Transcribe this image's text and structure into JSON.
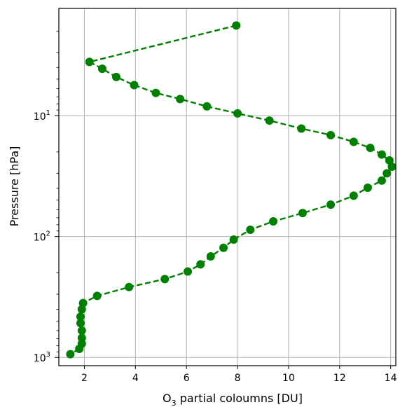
{
  "chart_data": {
    "type": "line",
    "xlabel": "O3 partial coloumns [DU]",
    "xlabel_main": "O",
    "xlabel_sub": "3",
    "xlabel_rest": " partial coloumns [DU]",
    "ylabel": "Pressure [hPa]",
    "xlim": [
      1.0,
      14.2
    ],
    "ylim": [
      1170,
      1.3
    ],
    "yscale": "log",
    "y_inverted": true,
    "grid": true,
    "xticks": [
      2,
      4,
      6,
      8,
      10,
      12,
      14
    ],
    "xtick_labels": [
      "2",
      "4",
      "6",
      "8",
      "10",
      "12",
      "14"
    ],
    "yticks": [
      10,
      100,
      1000
    ],
    "ytick_labels": [
      {
        "base": "10",
        "exp": "1"
      },
      {
        "base": "10",
        "exp": "2"
      },
      {
        "base": "10",
        "exp": "3"
      }
    ],
    "series": [
      {
        "color": "#008000",
        "line_style": "dashed",
        "marker": "circle",
        "x": [
          7.95,
          2.2,
          2.7,
          3.25,
          3.95,
          4.8,
          5.75,
          6.8,
          8.0,
          9.25,
          10.5,
          11.65,
          12.55,
          13.2,
          13.65,
          13.95,
          14.05,
          13.85,
          13.65,
          13.1,
          12.55,
          11.65,
          10.55,
          9.4,
          8.5,
          7.85,
          7.45,
          6.95,
          6.55,
          6.05,
          5.15,
          3.75,
          2.5,
          1.95,
          1.9,
          1.85,
          1.85,
          1.9,
          1.9,
          1.9,
          1.8,
          1.45
        ],
        "y": [
          1.8,
          3.6,
          4.1,
          4.8,
          5.6,
          6.5,
          7.3,
          8.4,
          9.6,
          11.0,
          12.8,
          14.5,
          16.5,
          18.5,
          21.0,
          23.5,
          26.5,
          30.0,
          34.5,
          39.5,
          46.0,
          54.5,
          64.0,
          75.0,
          88.0,
          106.0,
          124.0,
          146.0,
          170.0,
          195.0,
          225.0,
          262.0,
          310.0,
          355.0,
          400.0,
          460.0,
          520.0,
          600.0,
          690.0,
          770.0,
          850.0,
          940.0
        ]
      }
    ]
  }
}
